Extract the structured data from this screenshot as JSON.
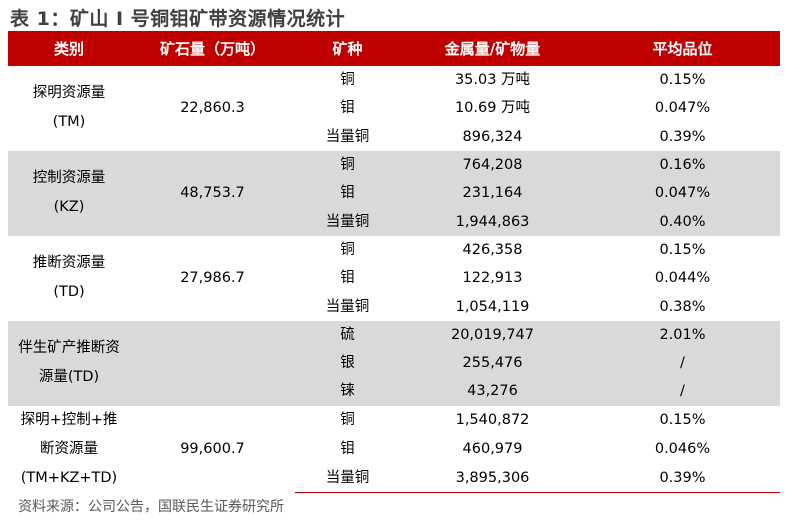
{
  "title": "表 1：矿山 I 号铜钼矿带资源情况统计",
  "header": [
    "类别",
    "矿石量（万吨）",
    "矿种",
    "金属量/矿物量",
    "平均品位"
  ],
  "groups": [
    {
      "category": [
        "探明资源量",
        "(TM)"
      ],
      "ore": "22,860.3",
      "shaded": false,
      "rows": [
        [
          "铜",
          "35.03 万吨",
          "0.15%"
        ],
        [
          "钼",
          "10.69 万吨",
          "0.047%"
        ],
        [
          "当量铜",
          "896,324",
          "0.39%"
        ]
      ]
    },
    {
      "category": [
        "控制资源量",
        "(KZ)"
      ],
      "ore": "48,753.7",
      "shaded": true,
      "rows": [
        [
          "铜",
          "764,208",
          "0.16%"
        ],
        [
          "钼",
          "231,164",
          "0.047%"
        ],
        [
          "当量铜",
          "1,944,863",
          "0.40%"
        ]
      ]
    },
    {
      "category": [
        "推断资源量",
        "(TD)"
      ],
      "ore": "27,986.7",
      "shaded": false,
      "rows": [
        [
          "铜",
          "426,358",
          "0.15%"
        ],
        [
          "钼",
          "122,913",
          "0.044%"
        ],
        [
          "当量铜",
          "1,054,119",
          "0.38%"
        ]
      ]
    },
    {
      "category": [
        "伴生矿产推断资",
        "源量(TD)"
      ],
      "ore": "",
      "shaded": true,
      "rows": [
        [
          "硫",
          "20,019,747",
          "2.01%"
        ],
        [
          "银",
          "255,476",
          "/"
        ],
        [
          "铼",
          "43,276",
          "/"
        ]
      ]
    },
    {
      "category": [
        "探明+控制+推",
        "断资源量",
        "(TM+KZ+TD)"
      ],
      "ore": "99,600.7",
      "shaded": false,
      "rows": [
        [
          "铜",
          "1,540,872",
          "0.15%"
        ],
        [
          "钼",
          "460,979",
          "0.046%"
        ],
        [
          "当量铜",
          "3,895,306",
          "0.39%"
        ]
      ]
    }
  ],
  "source": "资料来源：公司公告，国联民生证券研究所",
  "colors": {
    "header_bg": "#C00000",
    "shade": "#D9D9D9"
  }
}
